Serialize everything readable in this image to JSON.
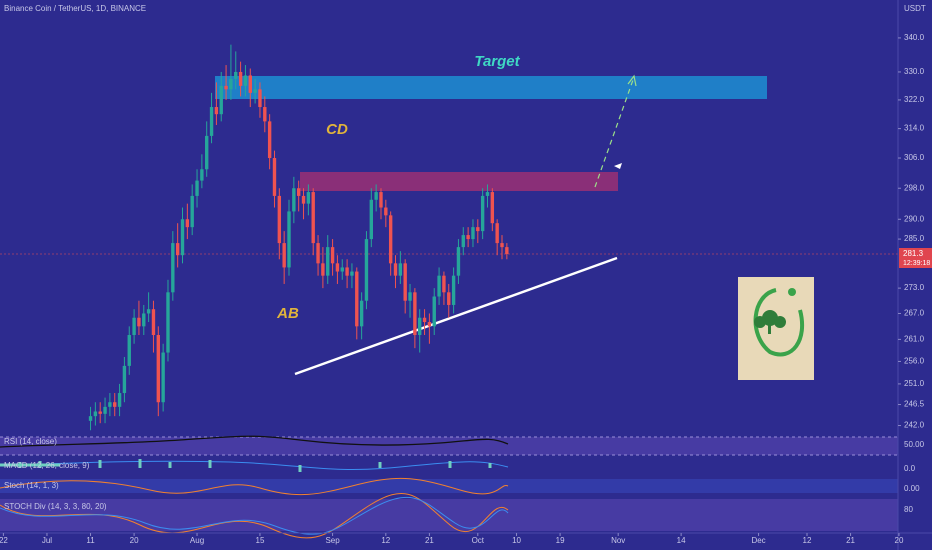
{
  "chart_data": {
    "type": "candlestick",
    "title": "Binance Coin / TetherUS, 1D, BINANCE",
    "currency": "USDT",
    "open": [
      243,
      244,
      245,
      244.5,
      246,
      247,
      246,
      249,
      255,
      262,
      266,
      264,
      267,
      268,
      262,
      247,
      258,
      272,
      284,
      281,
      290,
      288,
      296,
      300,
      303,
      312,
      320,
      318,
      326,
      325,
      328,
      330,
      326,
      329,
      324,
      325,
      320,
      316,
      306,
      296,
      284,
      278,
      292,
      298,
      296,
      294,
      297,
      284,
      279,
      276,
      283,
      279,
      277,
      278,
      276,
      277,
      264,
      270,
      285,
      295,
      297,
      293,
      291,
      279,
      276,
      279,
      270,
      272,
      262,
      266,
      265,
      264,
      271,
      276,
      272,
      269,
      276,
      283,
      286,
      285,
      288,
      287,
      296,
      297,
      289,
      284,
      283
    ],
    "high": [
      246,
      247,
      247,
      248,
      249,
      249,
      251,
      257,
      264,
      268,
      270,
      269,
      272,
      270,
      264,
      260,
      275,
      287,
      289,
      293,
      294,
      299,
      303,
      307,
      316,
      324,
      327,
      330,
      332,
      338,
      336,
      333,
      332,
      331,
      328,
      327,
      323,
      318,
      308,
      298,
      287,
      295,
      301,
      300,
      298,
      299,
      298,
      286,
      283,
      286,
      285,
      281,
      280,
      280,
      279,
      278,
      272,
      287,
      298,
      299,
      298,
      295,
      292,
      281,
      282,
      280,
      274,
      273,
      268,
      268,
      267,
      273,
      278,
      277,
      274,
      278,
      285,
      288,
      288,
      290,
      290,
      298,
      299,
      298,
      290,
      286,
      284
    ],
    "low": [
      241,
      242,
      242.5,
      242.5,
      244,
      244,
      244,
      247,
      253,
      260,
      262,
      262,
      265,
      258,
      244,
      245,
      256,
      270,
      278,
      279,
      285,
      286,
      293,
      298,
      301,
      310,
      315,
      316,
      322,
      322,
      325,
      323,
      323,
      320,
      321,
      317,
      313,
      303,
      293,
      280,
      274,
      276,
      289,
      292,
      290,
      291,
      281,
      276,
      273,
      274,
      276,
      274,
      275,
      273,
      273,
      261,
      261,
      268,
      283,
      292,
      290,
      288,
      276,
      273,
      274,
      267,
      266,
      259,
      258,
      262,
      260,
      262,
      269,
      269,
      266,
      267,
      274,
      281,
      283,
      283,
      284,
      285,
      293,
      287,
      281,
      280,
      280
    ],
    "close": [
      244,
      245,
      244.5,
      246,
      247,
      246,
      249,
      255,
      262,
      266,
      264,
      267,
      268,
      262,
      247,
      258,
      272,
      284,
      281,
      290,
      288,
      296,
      300,
      303,
      312,
      320,
      318,
      326,
      325,
      328,
      330,
      326,
      329,
      324,
      325,
      320,
      316,
      306,
      296,
      284,
      278,
      292,
      298,
      296,
      294,
      297,
      284,
      279,
      276,
      283,
      279,
      277,
      278,
      276,
      277,
      264,
      270,
      285,
      295,
      297,
      293,
      291,
      279,
      276,
      279,
      270,
      272,
      262,
      266,
      265,
      264,
      271,
      276,
      272,
      269,
      276,
      283,
      286,
      285,
      288,
      287,
      296,
      297,
      289,
      284,
      283,
      281.3
    ],
    "up_color": "#26a69a",
    "down_color": "#ef5350",
    "countdown": "12:39:18",
    "log_scale": true,
    "ylim": [
      240,
      351.5
    ],
    "yticks": [
      {
        "value": 340,
        "label": "340.0"
      },
      {
        "value": 330,
        "label": "330.0"
      },
      {
        "value": 322,
        "label": "322.0"
      },
      {
        "value": 314,
        "label": "314.0"
      },
      {
        "value": 306,
        "label": "306.0"
      },
      {
        "value": 298,
        "label": "298.0"
      },
      {
        "value": 290,
        "label": "290.0"
      },
      {
        "value": 285,
        "label": "285.0"
      },
      {
        "value": 273,
        "label": "273.0"
      },
      {
        "value": 267,
        "label": "267.0"
      },
      {
        "value": 261,
        "label": "261.0"
      },
      {
        "value": 256,
        "label": "256.0"
      },
      {
        "value": 251,
        "label": "251.0"
      },
      {
        "value": 246.5,
        "label": "246.5"
      },
      {
        "value": 242,
        "label": "242.0"
      }
    ],
    "xlim": [
      -18.7,
      166.8
    ],
    "xticks": [
      {
        "value": -18,
        "label": "22"
      },
      {
        "value": -9,
        "label": "Jul"
      },
      {
        "value": 0,
        "label": "11"
      },
      {
        "value": 9,
        "label": "20"
      },
      {
        "value": 22,
        "label": "Aug"
      },
      {
        "value": 35,
        "label": "15"
      },
      {
        "value": 50,
        "label": "Sep"
      },
      {
        "value": 61,
        "label": "12"
      },
      {
        "value": 70,
        "label": "21"
      },
      {
        "value": 80,
        "label": "Oct"
      },
      {
        "value": 88,
        "label": "10"
      },
      {
        "value": 97,
        "label": "19"
      },
      {
        "value": 109,
        "label": "Nov"
      },
      {
        "value": 122,
        "label": "14"
      },
      {
        "value": 138,
        "label": "Dec"
      },
      {
        "value": 148,
        "label": "12"
      },
      {
        "value": 157,
        "label": "21"
      },
      {
        "value": 167,
        "label": "20"
      }
    ],
    "annotations": [
      "Target",
      "CD",
      "AB"
    ],
    "indicators": [
      {
        "label": "RSI (14, close)",
        "level": {
          "value": 50,
          "label": "50.00"
        }
      },
      {
        "label": "MACD (12, 26, close, 9)",
        "level": {
          "value": 0,
          "label": "0.0"
        }
      },
      {
        "label": "Stoch (14, 1, 3)",
        "level": {
          "value": 0,
          "label": "0.00"
        }
      },
      {
        "label": "STOCH Div (14, 3, 3, 80, 20)",
        "level": 80
      }
    ]
  }
}
